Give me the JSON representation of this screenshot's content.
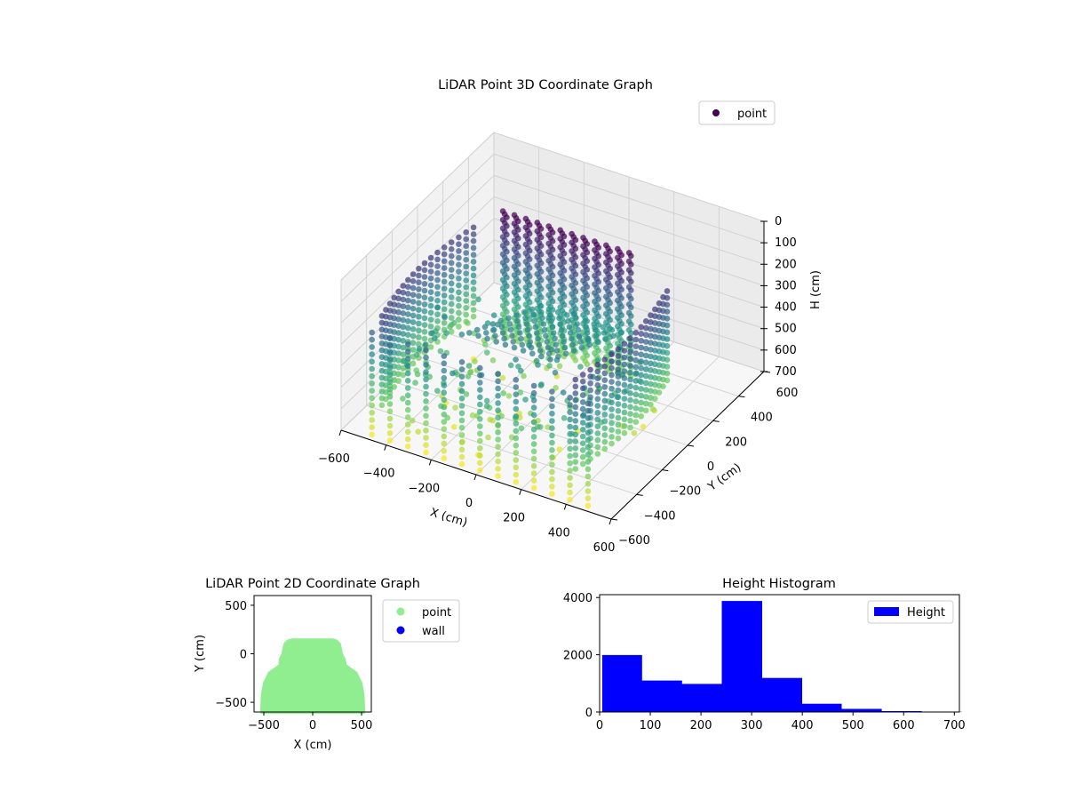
{
  "chart_data": [
    {
      "type": "scatter",
      "projection": "3d",
      "title": "LiDAR Point 3D Coordinate Graph",
      "xlabel": "X (cm)",
      "ylabel": "Y (cm)",
      "zlabel": "H (cm)",
      "xlim": [
        -600,
        600
      ],
      "ylim": [
        -600,
        600
      ],
      "zlim": [
        0,
        700
      ],
      "z_inverted": true,
      "xticks": [
        "−600",
        "−400",
        "−200",
        "0",
        "200",
        "400",
        "600"
      ],
      "yticks": [
        "−600",
        "−400",
        "−200",
        "0",
        "200",
        "400",
        "600"
      ],
      "zticks": [
        "0",
        "100",
        "200",
        "300",
        "400",
        "500",
        "600",
        "700"
      ],
      "grid": true,
      "legend": {
        "placement": "top-right",
        "entries": [
          {
            "label": "point",
            "color": "#440154"
          }
        ]
      },
      "colormap": "viridis",
      "color_by": "H (cm)",
      "shape": {
        "x_range": [
          -520,
          520
        ],
        "y_range": [
          -580,
          150
        ],
        "rear_wall_y": 140,
        "height_range": [
          0,
          700
        ]
      }
    },
    {
      "type": "scatter",
      "title": "LiDAR Point 2D Coordinate Graph",
      "xlabel": "X (cm)",
      "ylabel": "Y (cm)",
      "xlim": [
        -600,
        600
      ],
      "ylim": [
        -600,
        600
      ],
      "xticks": [
        "−500",
        "0",
        "500"
      ],
      "yticks": [
        "−500",
        "0",
        "500"
      ],
      "legend": {
        "placement": "outside-right",
        "entries": [
          {
            "label": "point",
            "color": "#90ee90"
          },
          {
            "label": "wall",
            "color": "#0000ff"
          }
        ]
      },
      "series": [
        {
          "name": "point",
          "color": "#90ee90",
          "outline": [
            [
              -520,
              -600
            ],
            [
              -512,
              -420
            ],
            [
              -490,
              -300
            ],
            [
              -440,
              -200
            ],
            [
              -330,
              -120
            ],
            [
              -330,
              -60
            ],
            [
              -300,
              0
            ],
            [
              -290,
              60
            ],
            [
              -280,
              100
            ],
            [
              -250,
              130
            ],
            [
              -210,
              140
            ],
            [
              200,
              140
            ],
            [
              240,
              130
            ],
            [
              270,
              100
            ],
            [
              280,
              60
            ],
            [
              290,
              0
            ],
            [
              320,
              -60
            ],
            [
              330,
              -120
            ],
            [
              440,
              -200
            ],
            [
              490,
              -300
            ],
            [
              512,
              -420
            ],
            [
              520,
              -600
            ]
          ]
        }
      ]
    },
    {
      "type": "bar",
      "title": "Height Histogram",
      "xlim": [
        0,
        710
      ],
      "ylim": [
        0,
        4100
      ],
      "xticks": [
        0,
        100,
        200,
        300,
        400,
        500,
        600,
        700
      ],
      "yticks": [
        0,
        2000,
        4000
      ],
      "legend": {
        "placement": "top-right",
        "entries": [
          {
            "label": "Height",
            "color": "#0000ff"
          }
        ]
      },
      "series": [
        {
          "name": "Height",
          "color": "#0000ff",
          "bins": [
            {
              "x0": 5,
              "x1": 83,
              "count": 1990
            },
            {
              "x0": 83,
              "x1": 162,
              "count": 1100
            },
            {
              "x0": 162,
              "x1": 241,
              "count": 980
            },
            {
              "x0": 241,
              "x1": 320,
              "count": 3880
            },
            {
              "x0": 320,
              "x1": 399,
              "count": 1190
            },
            {
              "x0": 399,
              "x1": 477,
              "count": 290
            },
            {
              "x0": 477,
              "x1": 556,
              "count": 110
            },
            {
              "x0": 556,
              "x1": 635,
              "count": 30
            },
            {
              "x0": 635,
              "x1": 714,
              "count": 10
            }
          ]
        }
      ]
    }
  ]
}
